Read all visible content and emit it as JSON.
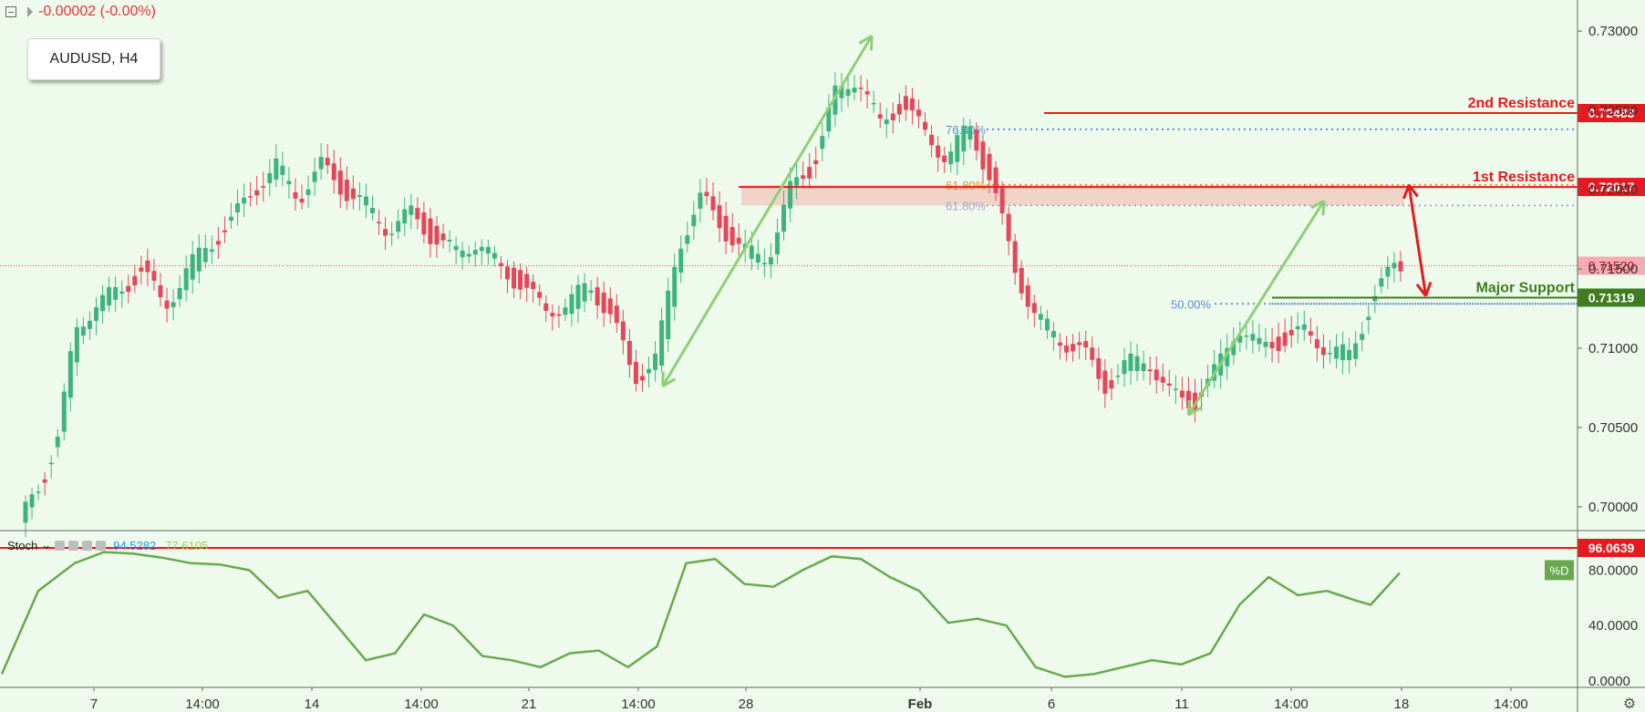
{
  "header": {
    "change_text": "-0.00002 (-0.00%)",
    "symbol_label": "AUDUSD, H4"
  },
  "stoch": {
    "name": "Stoch",
    "k_value": "94.5282",
    "d_value": "77.6105",
    "d_badge": "%D"
  },
  "colors": {
    "background": "#eefbec",
    "up": "#3fb37f",
    "down": "#e8455a",
    "resistance": "#e8191e",
    "support": "#3f7d1f",
    "arrow_green": "#8fcf78",
    "stoch_line": "#6aa84f",
    "fib_blue": "#5a8fd6",
    "fib_orange": "#e58e1d"
  },
  "chart_data": {
    "type": "candlestick",
    "price_axis": {
      "ticks": [
        "0.73000",
        "0.72500",
        "0.72000",
        "0.71500",
        "0.71000",
        "0.70500",
        "0.70000"
      ],
      "range": [
        0.6985,
        0.7315
      ]
    },
    "time_axis": {
      "ticks": [
        "7",
        "14:00",
        "14",
        "14:00",
        "21",
        "14:00",
        "28",
        "Feb",
        "6",
        "11",
        "14:00",
        "18",
        "14:00"
      ]
    },
    "levels": [
      {
        "label": "2nd Resistance",
        "price": 0.72483,
        "price_label": "0.72483",
        "color": "#e8191e"
      },
      {
        "label": "1st Resistance",
        "price": 0.72017,
        "price_label": "0.72017",
        "color": "#e8191e"
      },
      {
        "label": "Major Support",
        "price": 0.71319,
        "price_label": "0.71319",
        "color": "#3f7d1f"
      }
    ],
    "current_price": {
      "price": 0.7152,
      "label": "0.71520"
    },
    "fib_labels": [
      {
        "text": "76.40%",
        "price": 0.7238,
        "color": "#5a8fd6"
      },
      {
        "text": "61.80%",
        "price": 0.7203,
        "color": "#e58e1d"
      },
      {
        "text": "61.80%",
        "price": 0.719,
        "color": "#a9a2d9"
      },
      {
        "text": "50.00%",
        "price": 0.7128,
        "color": "#5a8fd6"
      }
    ],
    "resistance_zone": [
      0.719,
      0.7203
    ],
    "candle_path": [
      [
        0,
        0.699
      ],
      [
        4,
        0.7015
      ],
      [
        7,
        0.7045
      ],
      [
        10,
        0.711
      ],
      [
        14,
        0.713
      ],
      [
        18,
        0.7135
      ],
      [
        22,
        0.715
      ],
      [
        26,
        0.7125
      ],
      [
        30,
        0.715
      ],
      [
        34,
        0.7165
      ],
      [
        38,
        0.718
      ],
      [
        42,
        0.72
      ],
      [
        46,
        0.7215
      ],
      [
        50,
        0.7195
      ],
      [
        54,
        0.7215
      ],
      [
        58,
        0.72
      ],
      [
        62,
        0.719
      ],
      [
        66,
        0.7175
      ],
      [
        70,
        0.7185
      ],
      [
        74,
        0.717
      ],
      [
        78,
        0.716
      ],
      [
        82,
        0.7168
      ],
      [
        86,
        0.715
      ],
      [
        90,
        0.714
      ],
      [
        94,
        0.7123
      ],
      [
        98,
        0.7128
      ],
      [
        102,
        0.714
      ],
      [
        106,
        0.712
      ],
      [
        110,
        0.708
      ],
      [
        114,
        0.7095
      ],
      [
        118,
        0.7165
      ],
      [
        122,
        0.7195
      ],
      [
        126,
        0.7175
      ],
      [
        130,
        0.716
      ],
      [
        134,
        0.7158
      ],
      [
        138,
        0.72
      ],
      [
        142,
        0.7215
      ],
      [
        146,
        0.726
      ],
      [
        150,
        0.7272
      ],
      [
        154,
        0.724
      ],
      [
        158,
        0.7255
      ],
      [
        162,
        0.7235
      ],
      [
        166,
        0.722
      ],
      [
        170,
        0.724
      ],
      [
        174,
        0.7205
      ],
      [
        178,
        0.715
      ],
      [
        182,
        0.712
      ],
      [
        186,
        0.7105
      ],
      [
        190,
        0.71
      ],
      [
        194,
        0.7075
      ],
      [
        198,
        0.709
      ],
      [
        202,
        0.7093
      ],
      [
        206,
        0.707
      ],
      [
        210,
        0.7065
      ],
      [
        214,
        0.7085
      ],
      [
        218,
        0.7115
      ],
      [
        222,
        0.71
      ],
      [
        226,
        0.7105
      ],
      [
        230,
        0.711
      ],
      [
        234,
        0.71
      ],
      [
        238,
        0.7095
      ],
      [
        242,
        0.713
      ],
      [
        246,
        0.7152
      ]
    ],
    "drawings": {
      "arrows": [
        {
          "from": [
            114,
            0.7076
          ],
          "to": [
            151,
            0.7297
          ],
          "color": "#8fcf78"
        },
        {
          "from": [
            207,
            0.7058
          ],
          "to": [
            231,
            0.7193
          ],
          "color": "#8fcf78"
        },
        {
          "from": [
            246,
            0.7203
          ],
          "to": [
            249,
            0.7133
          ],
          "color": "#e8191e"
        }
      ]
    },
    "stochastic": {
      "ticks": [
        "96.0639",
        "80.0000",
        "40.0000",
        "0.0000"
      ],
      "level": 96.0639,
      "d_line": [
        [
          0,
          5
        ],
        [
          5,
          65
        ],
        [
          10,
          85
        ],
        [
          14,
          93
        ],
        [
          18,
          92
        ],
        [
          22,
          89
        ],
        [
          26,
          85
        ],
        [
          30,
          84
        ],
        [
          34,
          80
        ],
        [
          38,
          60
        ],
        [
          42,
          65
        ],
        [
          46,
          40
        ],
        [
          50,
          15
        ],
        [
          54,
          20
        ],
        [
          58,
          48
        ],
        [
          62,
          40
        ],
        [
          66,
          18
        ],
        [
          70,
          15
        ],
        [
          74,
          10
        ],
        [
          78,
          20
        ],
        [
          82,
          22
        ],
        [
          86,
          10
        ],
        [
          90,
          25
        ],
        [
          94,
          85
        ],
        [
          98,
          88
        ],
        [
          102,
          70
        ],
        [
          106,
          68
        ],
        [
          110,
          80
        ],
        [
          114,
          90
        ],
        [
          118,
          88
        ],
        [
          122,
          75
        ],
        [
          126,
          65
        ],
        [
          130,
          42
        ],
        [
          134,
          45
        ],
        [
          138,
          40
        ],
        [
          142,
          10
        ],
        [
          146,
          3
        ],
        [
          150,
          5
        ],
        [
          154,
          10
        ],
        [
          158,
          15
        ],
        [
          162,
          12
        ],
        [
          166,
          20
        ],
        [
          170,
          55
        ],
        [
          174,
          75
        ],
        [
          178,
          62
        ],
        [
          182,
          65
        ],
        [
          186,
          58
        ],
        [
          188,
          55
        ],
        [
          192,
          78
        ]
      ]
    }
  }
}
